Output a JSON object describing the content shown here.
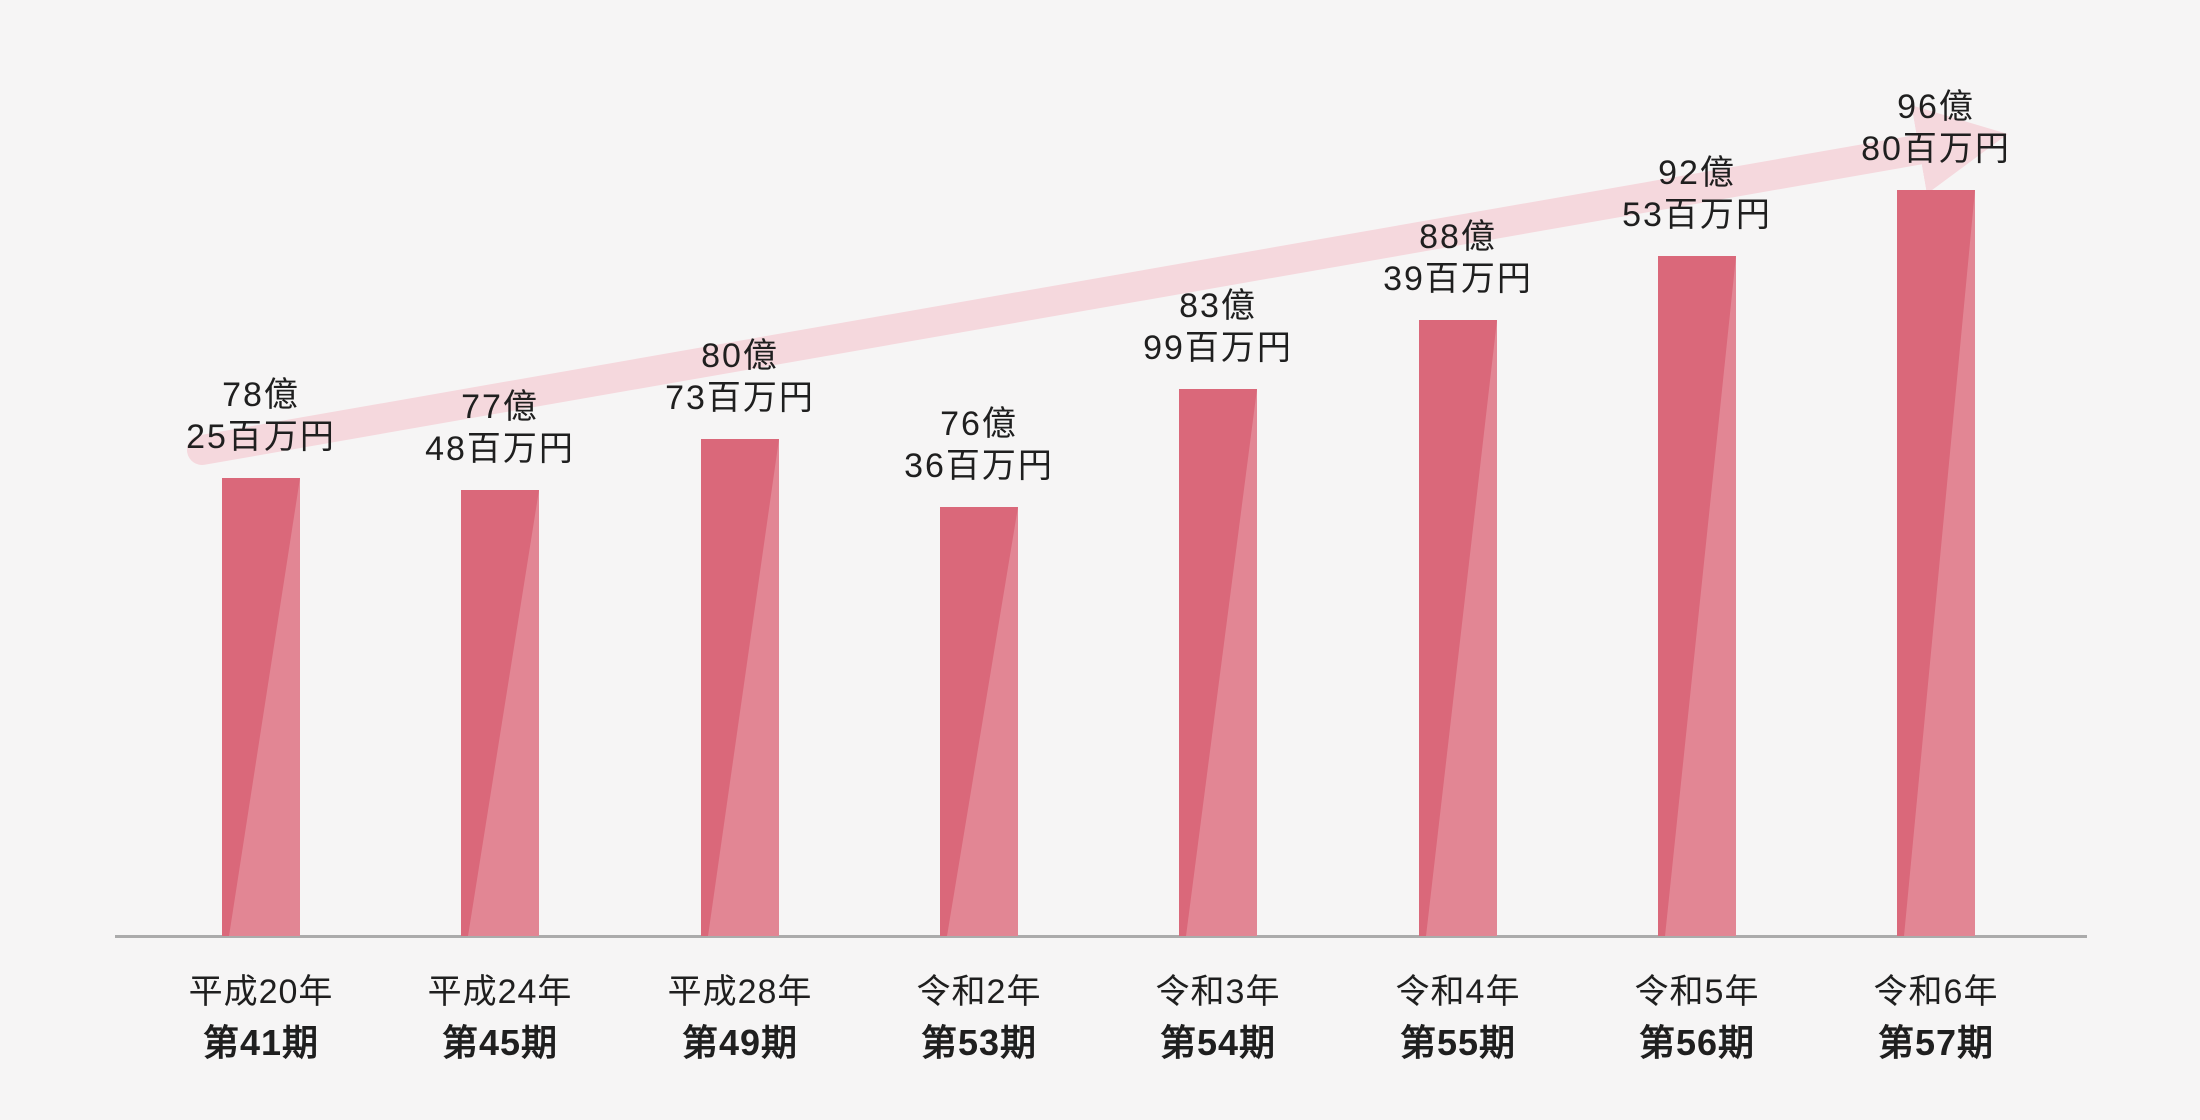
{
  "chart_data": {
    "type": "bar",
    "title": "",
    "unit": "百万円",
    "categories": [
      "平成20年 第41期",
      "平成24年 第45期",
      "平成28年 第49期",
      "令和2年 第53期",
      "令和3年 第54期",
      "令和4年 第55期",
      "令和5年 第56期",
      "令和6年 第57期"
    ],
    "values": [
      7825,
      7748,
      8073,
      7636,
      8399,
      8839,
      9253,
      9680
    ],
    "value_labels": [
      "78億25百万円",
      "77億48百万円",
      "80億73百万円",
      "76億36百万円",
      "83億99百万円",
      "88億39百万円",
      "92億53百万円",
      "96億80百万円"
    ],
    "xlabel": "",
    "ylabel": "",
    "ylim_implied": [
      4870,
      9900
    ],
    "grid": false,
    "legend": "none",
    "annotations": [
      "上昇トレンドを示す薄ピンクの矢印（左下から右上へ）"
    ]
  },
  "bars": [
    {
      "line1": "78億",
      "line2": "25百万円",
      "year": "平成20年",
      "term": "第41期",
      "value": 7825
    },
    {
      "line1": "77億",
      "line2": "48百万円",
      "year": "平成24年",
      "term": "第45期",
      "value": 7748
    },
    {
      "line1": "80億",
      "line2": "73百万円",
      "year": "平成28年",
      "term": "第49期",
      "value": 8073
    },
    {
      "line1": "76億",
      "line2": "36百万円",
      "year": "令和2年",
      "term": "第53期",
      "value": 7636
    },
    {
      "line1": "83億",
      "line2": "99百万円",
      "year": "令和3年",
      "term": "第54期",
      "value": 8399
    },
    {
      "line1": "88億",
      "line2": "39百万円",
      "year": "令和4年",
      "term": "第55期",
      "value": 8839
    },
    {
      "line1": "92億",
      "line2": "53百万円",
      "year": "令和5年",
      "term": "第56期",
      "value": 9253
    },
    {
      "line1": "96億",
      "line2": "80百万円",
      "year": "令和6年",
      "term": "第57期",
      "value": 9680
    }
  ],
  "colors": {
    "background": "#f6f5f5",
    "bar": "#da687a",
    "bar_highlight": "#e28694",
    "trend_arrow": "#f5d8dd",
    "axis": "#ababab",
    "text": "#1f1f1f"
  }
}
